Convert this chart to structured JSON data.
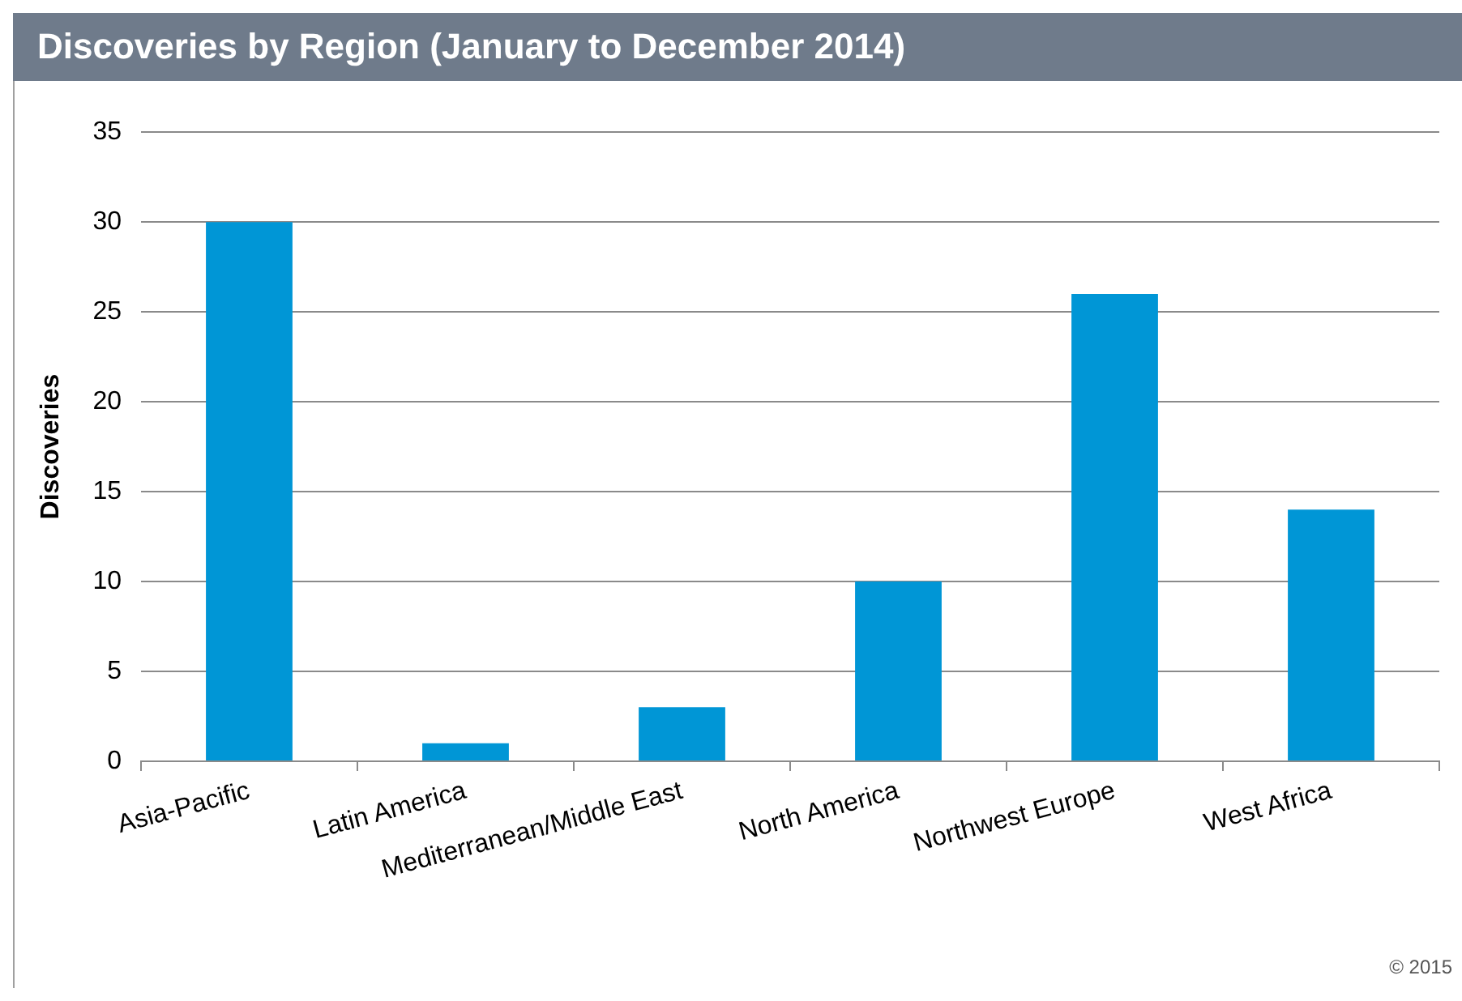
{
  "chart_data": {
    "type": "bar",
    "title": "Discoveries by Region (January to December 2014)",
    "ylabel": "Discoveries",
    "categories": [
      "Asia-Pacific",
      "Latin America",
      "Mediterranean/Middle East",
      "North America",
      "Northwest Europe",
      "West Africa"
    ],
    "values": [
      30,
      1,
      3,
      10,
      26,
      14
    ],
    "color": "#0096d6",
    "ylim": [
      0,
      35
    ],
    "yticks": [
      0,
      5,
      10,
      15,
      20,
      25,
      30,
      35
    ],
    "grid": "y",
    "annotations": [
      "© 2015"
    ]
  }
}
